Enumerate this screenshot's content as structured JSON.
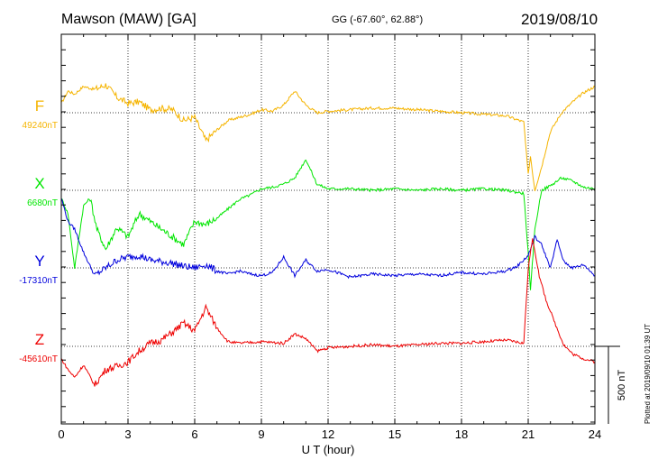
{
  "header": {
    "station": "Mawson (MAW)  [GA]",
    "coordinates": "GG (-67.60°,  62.88°)",
    "date": "2019/08/10"
  },
  "footer": {
    "plotted": "Plotted at 2019/09/10 01:39 UT"
  },
  "scale_label": "500 nT",
  "chart_data": {
    "type": "line",
    "xlabel": "U T (hour)",
    "xlim": [
      0,
      24
    ],
    "xticks": [
      "0",
      "3",
      "6",
      "9",
      "12",
      "15",
      "18",
      "21",
      "24"
    ],
    "grid": true,
    "scale_bar_nT": 500,
    "series": [
      {
        "name": "F",
        "baseline_label": "49240nT",
        "baseline_nT": 49240,
        "color": "#f5b400",
        "x": [
          0,
          0.3,
          0.6,
          1.0,
          1.5,
          2.0,
          2.5,
          3.0,
          3.5,
          4.0,
          4.5,
          5.0,
          5.5,
          6.0,
          6.5,
          7.0,
          7.5,
          8.0,
          8.5,
          9.0,
          9.5,
          10.0,
          10.5,
          11.0,
          11.5,
          12.0,
          13.0,
          14.0,
          15.0,
          16.0,
          17.0,
          18.0,
          19.0,
          20.0,
          20.8,
          21.0,
          21.1,
          21.3,
          21.6,
          22.0,
          22.5,
          23.0,
          23.5,
          24.0
        ],
        "y": [
          60,
          140,
          120,
          170,
          150,
          180,
          100,
          60,
          70,
          20,
          30,
          20,
          -50,
          -30,
          -180,
          -110,
          -50,
          -30,
          -10,
          20,
          10,
          50,
          140,
          50,
          0,
          10,
          20,
          30,
          30,
          20,
          10,
          0,
          -10,
          -20,
          -60,
          -400,
          -280,
          -500,
          -350,
          -120,
          0,
          70,
          130,
          170
        ]
      },
      {
        "name": "X",
        "baseline_label": "6680nT",
        "baseline_nT": 6680,
        "color": "#00e600",
        "x": [
          0,
          0.3,
          0.6,
          1.0,
          1.3,
          1.6,
          2.0,
          2.5,
          3.0,
          3.5,
          4.0,
          4.5,
          5.0,
          5.5,
          6.0,
          6.5,
          7.0,
          7.5,
          8.0,
          8.5,
          9.0,
          9.5,
          10.0,
          10.5,
          11.0,
          11.5,
          12.0,
          13.0,
          14.0,
          15.0,
          16.0,
          17.0,
          18.0,
          19.0,
          20.0,
          20.8,
          21.0,
          21.1,
          21.3,
          21.6,
          22.0,
          22.5,
          23.0,
          23.5,
          24.0
        ],
        "y": [
          -50,
          -150,
          -500,
          -100,
          -50,
          -250,
          -380,
          -240,
          -300,
          -150,
          -200,
          -250,
          -300,
          -350,
          -200,
          -220,
          -180,
          -120,
          -60,
          -30,
          10,
          20,
          40,
          80,
          200,
          40,
          10,
          10,
          0,
          10,
          0,
          10,
          0,
          10,
          0,
          -20,
          -400,
          -650,
          -250,
          0,
          30,
          80,
          60,
          20,
          10
        ]
      },
      {
        "name": "Y",
        "baseline_label": "-17310nT",
        "baseline_nT": -17310,
        "color": "#0000dd",
        "x": [
          0,
          0.3,
          0.6,
          1.0,
          1.5,
          2.0,
          2.5,
          3.0,
          3.5,
          4.0,
          4.5,
          5.0,
          5.5,
          6.0,
          6.5,
          7.0,
          7.5,
          8.0,
          8.5,
          9.0,
          9.5,
          10.0,
          10.5,
          11.0,
          11.5,
          12.0,
          13.0,
          14.0,
          15.0,
          16.0,
          17.0,
          18.0,
          19.0,
          20.0,
          20.5,
          21.0,
          21.3,
          21.6,
          22.0,
          22.3,
          22.6,
          23.0,
          23.5,
          24.0
        ],
        "y": [
          450,
          300,
          250,
          100,
          -50,
          0,
          50,
          70,
          80,
          50,
          40,
          30,
          10,
          0,
          20,
          -20,
          -40,
          -20,
          -40,
          -50,
          -30,
          70,
          -50,
          50,
          -20,
          -10,
          -60,
          -40,
          -50,
          -40,
          -50,
          -30,
          -40,
          -20,
          10,
          80,
          200,
          150,
          0,
          180,
          40,
          0,
          20,
          -50
        ]
      },
      {
        "name": "Z",
        "baseline_label": "-45610nT",
        "baseline_nT": -45610,
        "color": "#ee0000",
        "x": [
          0,
          0.3,
          0.6,
          1.0,
          1.5,
          2.0,
          2.5,
          3.0,
          3.5,
          4.0,
          4.5,
          5.0,
          5.5,
          6.0,
          6.5,
          7.0,
          7.5,
          8.0,
          9.0,
          10.0,
          10.5,
          11.0,
          11.5,
          12.0,
          13.0,
          14.0,
          15.0,
          16.0,
          17.0,
          18.0,
          19.0,
          20.0,
          20.8,
          21.0,
          21.2,
          21.5,
          21.8,
          22.2,
          22.6,
          23.0,
          23.5,
          24.0
        ],
        "y": [
          -80,
          -150,
          -200,
          -120,
          -250,
          -150,
          -130,
          -100,
          -30,
          20,
          40,
          90,
          150,
          100,
          250,
          120,
          30,
          20,
          30,
          20,
          80,
          50,
          -30,
          -10,
          0,
          10,
          0,
          10,
          20,
          20,
          30,
          40,
          20,
          500,
          700,
          450,
          300,
          150,
          10,
          -50,
          -80,
          -100
        ]
      }
    ]
  }
}
